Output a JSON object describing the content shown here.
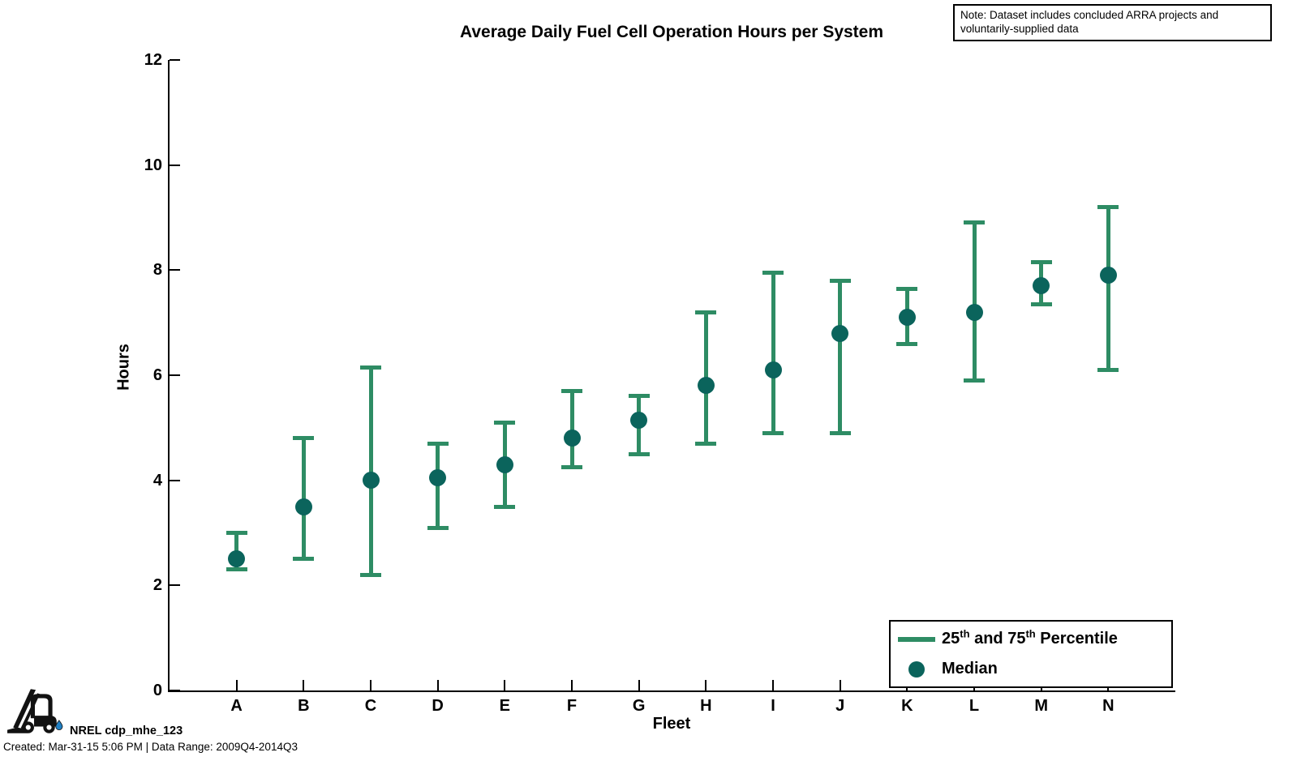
{
  "title": "Average Daily Fuel Cell Operation Hours per System",
  "note": {
    "line1": "Note: Dataset includes concluded ARRA projects and",
    "line2": "voluntarily-supplied data"
  },
  "legend": {
    "percentile": {
      "a": "25",
      "sup_a": "th",
      "b": " and 75",
      "sup_b": "th",
      "c": " Percentile"
    },
    "median": "Median"
  },
  "footer": {
    "credit": "NREL cdp_mhe_123",
    "created": "Created: Mar-31-15  5:06 PM | Data Range: 2009Q4-2014Q3"
  },
  "colors": {
    "errorbar_line": "#2E8C64",
    "median_dot": "#0B645C",
    "axis": "#000000",
    "logo_drop_blue": "#2180C4"
  },
  "chart_data": {
    "type": "scatter",
    "subtype": "errorbar",
    "title": "Average Daily Fuel Cell Operation Hours per System",
    "xlabel": "Fleet",
    "ylabel": "Hours",
    "categories": [
      "A",
      "B",
      "C",
      "D",
      "E",
      "F",
      "G",
      "H",
      "I",
      "J",
      "K",
      "L",
      "M",
      "N"
    ],
    "series": [
      {
        "name": "25th Percentile",
        "values": [
          2.3,
          2.5,
          2.2,
          3.1,
          3.5,
          4.25,
          4.5,
          4.7,
          4.9,
          4.9,
          6.6,
          5.9,
          7.35,
          6.1
        ]
      },
      {
        "name": "Median",
        "values": [
          2.5,
          3.5,
          4.0,
          4.05,
          4.3,
          4.8,
          5.15,
          5.8,
          6.1,
          6.8,
          7.1,
          7.2,
          7.7,
          7.9
        ]
      },
      {
        "name": "75th Percentile",
        "values": [
          3.0,
          4.8,
          6.15,
          4.7,
          5.1,
          5.7,
          5.6,
          7.2,
          7.95,
          7.8,
          7.65,
          8.9,
          8.15,
          9.2
        ]
      }
    ],
    "ylim": [
      0,
      12
    ],
    "yticks": [
      0,
      2,
      4,
      6,
      8,
      10,
      12
    ],
    "grid": false,
    "legend_position": "lower right"
  }
}
